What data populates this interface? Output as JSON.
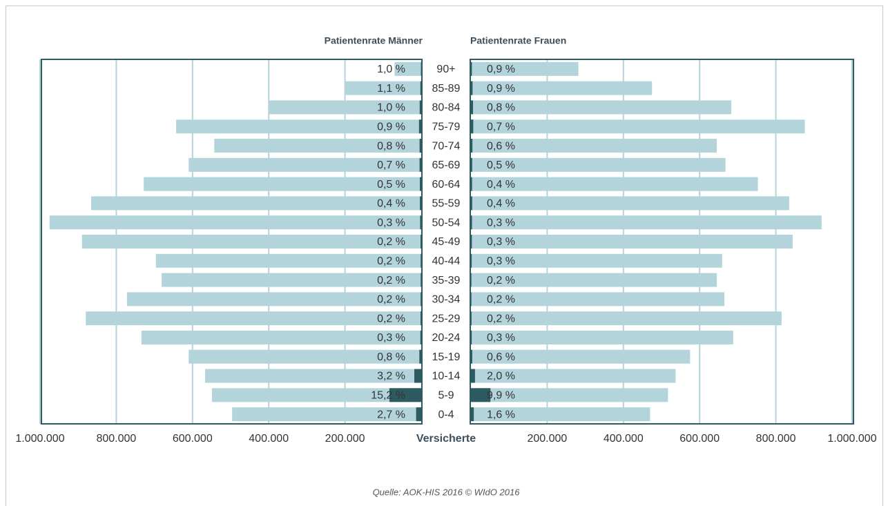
{
  "chart_data": {
    "type": "pyramid",
    "categories": [
      "90+",
      "85-89",
      "80-84",
      "75-79",
      "70-74",
      "65-69",
      "60-64",
      "55-59",
      "50-54",
      "45-49",
      "40-44",
      "35-39",
      "30-34",
      "25-29",
      "20-24",
      "15-19",
      "10-14",
      "5-9",
      "0-4"
    ],
    "x_label": "Versicherte",
    "xlim": [
      0,
      1000000
    ],
    "xticks": [
      {
        "value": 200000,
        "label": "200.000"
      },
      {
        "value": 400000,
        "label": "400.000"
      },
      {
        "value": 600000,
        "label": "600.000"
      },
      {
        "value": 800000,
        "label": "800.000"
      },
      {
        "value": 1000000,
        "label": "1.000.000"
      }
    ],
    "grid": true,
    "insured_color": "#b3d4da",
    "patient_color": "#2e5a61",
    "series": [
      {
        "name": "Patientenrate Männer",
        "side": "left",
        "insured": [
          70000,
          200000,
          400000,
          643000,
          543000,
          610000,
          728000,
          866000,
          975000,
          890000,
          696000,
          681000,
          772000,
          880000,
          734000,
          610000,
          567000,
          549000,
          496000
        ],
        "patients": [
          700,
          2200,
          4000,
          5800,
          4300,
          4300,
          3600,
          3500,
          2900,
          1800,
          1400,
          1400,
          1500,
          1800,
          2200,
          4900,
          18100,
          83400,
          13400
        ],
        "rates": [
          1.0,
          1.1,
          1.0,
          0.9,
          0.8,
          0.7,
          0.5,
          0.4,
          0.3,
          0.2,
          0.2,
          0.2,
          0.2,
          0.2,
          0.3,
          0.8,
          3.2,
          15.2,
          2.7
        ],
        "rate_labels": [
          "1,0 %",
          "1,1 %",
          "1,0 %",
          "0,9 %",
          "0,8 %",
          "0,7 %",
          "0,5 %",
          "0,4 %",
          "0,3 %",
          "0,2 %",
          "0,2 %",
          "0,2 %",
          "0,2 %",
          "0,2 %",
          "0,3 %",
          "0,8 %",
          "3,2 %",
          "15,2 %",
          "2,7 %"
        ]
      },
      {
        "name": "Patientenrate Frauen",
        "side": "right",
        "insured": [
          282000,
          475000,
          683000,
          876000,
          645000,
          668000,
          753000,
          835000,
          920000,
          844000,
          659000,
          645000,
          665000,
          815000,
          688000,
          575000,
          537000,
          517000,
          470000
        ],
        "patients": [
          2500,
          4300,
          5500,
          6100,
          3900,
          3300,
          3000,
          3300,
          2800,
          2500,
          2000,
          1300,
          1300,
          1600,
          2100,
          3500,
          10700,
          51200,
          7500
        ],
        "rates": [
          0.9,
          0.9,
          0.8,
          0.7,
          0.6,
          0.5,
          0.4,
          0.4,
          0.3,
          0.3,
          0.3,
          0.2,
          0.2,
          0.2,
          0.3,
          0.6,
          2.0,
          9.9,
          1.6
        ],
        "rate_labels": [
          "0,9 %",
          "0,9 %",
          "0,8 %",
          "0,7 %",
          "0,6 %",
          "0,5 %",
          "0,4 %",
          "0,4 %",
          "0,3 %",
          "0,3 %",
          "0,3 %",
          "0,2 %",
          "0,2 %",
          "0,2 %",
          "0,3 %",
          "0,6 %",
          "2,0 %",
          "9,9 %",
          "1,6 %"
        ]
      }
    ],
    "source": "Quelle: AOK-HIS 2016    © WIdO 2016"
  }
}
